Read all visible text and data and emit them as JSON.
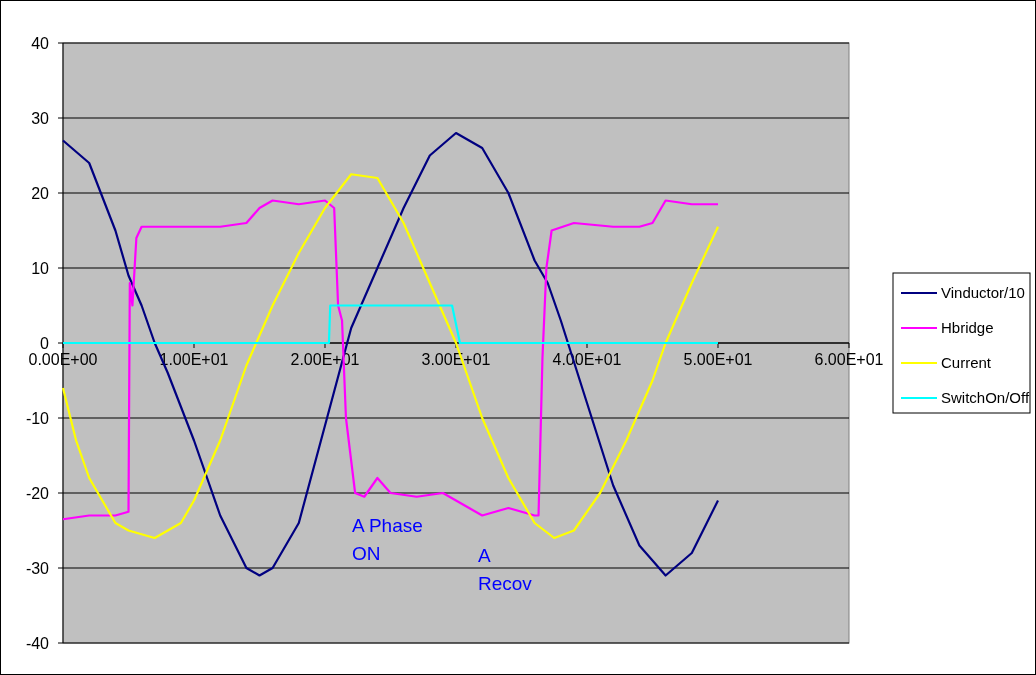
{
  "chart_data": {
    "type": "line",
    "xlim": [
      0,
      60
    ],
    "ylim": [
      -40,
      40
    ],
    "xticks": [
      {
        "value": 0,
        "label": "0.00E+00"
      },
      {
        "value": 10,
        "label": "1.00E+01"
      },
      {
        "value": 20,
        "label": "2.00E+01"
      },
      {
        "value": 30,
        "label": "3.00E+01"
      },
      {
        "value": 40,
        "label": "4.00E+01"
      },
      {
        "value": 50,
        "label": "5.00E+01"
      },
      {
        "value": 60,
        "label": "6.00E+01"
      }
    ],
    "yticks": [
      -40,
      -30,
      -20,
      -10,
      0,
      10,
      20,
      30,
      40
    ],
    "grid": "y",
    "legend": "right",
    "marker": "none",
    "line_style": "solid",
    "series": [
      {
        "name": "Vinductor/10",
        "color": "#000080",
        "x": [
          0,
          2,
          4,
          5,
          6,
          7,
          8,
          10,
          12,
          14,
          15,
          16,
          18,
          20,
          22,
          24,
          26,
          28,
          30,
          32,
          34,
          36,
          37,
          38,
          40,
          42,
          44,
          46,
          48,
          50
        ],
        "values": [
          27,
          24,
          15,
          9,
          5,
          0,
          -4,
          -13,
          -23,
          -30,
          -31,
          -30,
          -24,
          -11,
          2,
          10,
          18,
          25,
          28,
          26,
          20,
          11,
          8,
          3,
          -8,
          -19,
          -27,
          -31,
          -28,
          -21
        ]
      },
      {
        "name": "Hbridge",
        "color": "#ff00ff",
        "x": [
          0,
          2,
          4,
          5,
          5.1,
          5.3,
          5.6,
          6,
          8,
          10,
          12,
          14,
          15,
          16,
          18,
          20,
          20.7,
          21,
          21.3,
          21.6,
          22.3,
          23,
          24,
          25,
          27,
          29,
          30,
          31,
          32,
          34,
          36,
          36.3,
          36.6,
          36.9,
          37.3,
          39,
          42,
          44,
          45,
          46,
          48,
          50
        ],
        "values": [
          -23.5,
          -23,
          -23,
          -22.5,
          8,
          5,
          14,
          15.5,
          15.5,
          15.5,
          15.5,
          16,
          18,
          19,
          18.5,
          19,
          18,
          5,
          3,
          -10,
          -20,
          -20.5,
          -18,
          -20,
          -20.5,
          -20,
          -21,
          -22,
          -23,
          -22,
          -23,
          -23,
          -2,
          10,
          15,
          16,
          15.5,
          15.5,
          16,
          19,
          18.5,
          18.5
        ]
      },
      {
        "name": "Current",
        "color": "#ffff00",
        "x": [
          0,
          1,
          2,
          3,
          4,
          5,
          7,
          9,
          10,
          12,
          14,
          15,
          16,
          18,
          20,
          22,
          24,
          26,
          28,
          30,
          32,
          34,
          36,
          37.5,
          39,
          41,
          43,
          45,
          46,
          48,
          50
        ],
        "values": [
          -6,
          -13,
          -18,
          -21,
          -24,
          -25,
          -26,
          -24,
          -21,
          -13,
          -3,
          1,
          5,
          12,
          18,
          22.5,
          22,
          16,
          8,
          0,
          -10,
          -18,
          -24,
          -26,
          -25,
          -20,
          -13,
          -5,
          0,
          8,
          15.5
        ]
      },
      {
        "name": "SwitchOn/Off",
        "color": "#00ffff",
        "x": [
          0,
          20.3,
          20.4,
          29.7,
          30.3,
          50
        ],
        "values": [
          0,
          0,
          5,
          5,
          0,
          0
        ]
      }
    ],
    "annotations": [
      "A Phase\nON",
      "A\nRecov"
    ]
  }
}
